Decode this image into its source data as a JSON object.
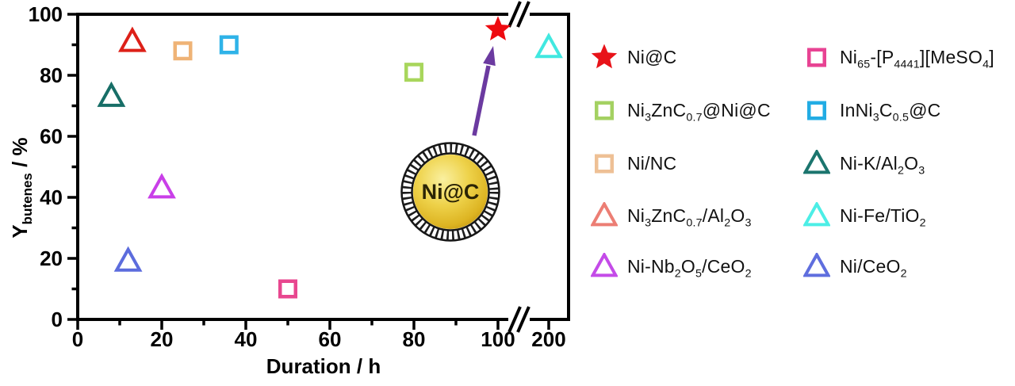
{
  "chart_data": {
    "type": "scatter",
    "title": "",
    "xlabel": "Duration / h",
    "ylabel": "Ybutenes / %",
    "ylabel_parts": [
      {
        "t": "Y"
      },
      {
        "t": "butenes",
        "sub": true
      },
      {
        "t": " / %"
      }
    ],
    "ylim": [
      0,
      100
    ],
    "grid": false,
    "x_axis_break_between": [
      100,
      200
    ],
    "x_ticks": {
      "major": [
        0,
        20,
        40,
        60,
        80,
        100,
        200
      ],
      "minor": [
        10,
        30,
        50,
        70,
        90
      ]
    },
    "y_ticks": {
      "major": [
        0,
        20,
        40,
        60,
        80,
        100
      ],
      "minor": [
        10,
        30,
        50,
        70,
        90
      ]
    },
    "series": [
      {
        "name": "Ni@C",
        "label_parts": [
          {
            "t": "Ni@C"
          }
        ],
        "marker": "star",
        "color": "#ee0a10",
        "legend_color": "#e81319",
        "x": 100,
        "y": 95
      },
      {
        "name": "Ni3ZnC0.7@Ni@C",
        "label_parts": [
          {
            "t": "Ni"
          },
          {
            "t": "3",
            "sub": true
          },
          {
            "t": "ZnC"
          },
          {
            "t": "0.7",
            "sub": true
          },
          {
            "t": "@Ni@C"
          }
        ],
        "marker": "square",
        "color": "#a8d65c",
        "legend_color": "#a4d162",
        "x": 80,
        "y": 81
      },
      {
        "name": "Ni/NC",
        "label_parts": [
          {
            "t": "Ni/NC"
          }
        ],
        "marker": "square",
        "color": "#efb376",
        "legend_color": "#eec095",
        "x": 25,
        "y": 88
      },
      {
        "name": "Ni3ZnC0.7/Al2O3",
        "label_parts": [
          {
            "t": "Ni"
          },
          {
            "t": "3",
            "sub": true
          },
          {
            "t": "ZnC"
          },
          {
            "t": "0.7",
            "sub": true
          },
          {
            "t": "/Al"
          },
          {
            "t": "2",
            "sub": true
          },
          {
            "t": "O"
          },
          {
            "t": "3",
            "sub": true
          }
        ],
        "marker": "triangle",
        "color": "#dd2018",
        "legend_color": "#ec7e74",
        "x": 13,
        "y": 91
      },
      {
        "name": "Ni-Nb2O5/CeO2",
        "label_parts": [
          {
            "t": "Ni-Nb"
          },
          {
            "t": "2",
            "sub": true
          },
          {
            "t": "O"
          },
          {
            "t": "5",
            "sub": true
          },
          {
            "t": "/CeO"
          },
          {
            "t": "2",
            "sub": true
          }
        ],
        "marker": "triangle",
        "color": "#c93fe8",
        "legend_color": "#c44be8",
        "x": 20,
        "y": 43
      },
      {
        "name": "Ni65-[P4441][MeSO4]",
        "label_parts": [
          {
            "t": "Ni"
          },
          {
            "t": "65",
            "sub": true
          },
          {
            "t": "-[P"
          },
          {
            "t": "4441",
            "sub": true
          },
          {
            "t": "][MeSO"
          },
          {
            "t": "4",
            "sub": true
          },
          {
            "t": "]"
          }
        ],
        "marker": "square",
        "color": "#e8478f",
        "legend_color": "#e84393",
        "x": 50,
        "y": 10
      },
      {
        "name": "InNi3C0.5@C",
        "label_parts": [
          {
            "t": "InNi"
          },
          {
            "t": "3",
            "sub": true
          },
          {
            "t": "C"
          },
          {
            "t": "0.5",
            "sub": true
          },
          {
            "t": "@C"
          }
        ],
        "marker": "square",
        "color": "#2fb3e8",
        "legend_color": "#22ace4",
        "x": 36,
        "y": 90
      },
      {
        "name": "Ni-K/Al2O3",
        "label_parts": [
          {
            "t": "Ni-K/Al"
          },
          {
            "t": "2",
            "sub": true
          },
          {
            "t": "O"
          },
          {
            "t": "3",
            "sub": true
          }
        ],
        "marker": "triangle",
        "color": "#176e67",
        "legend_color": "#1b756e",
        "x": 8,
        "y": 73
      },
      {
        "name": "Ni-Fe/TiO2",
        "label_parts": [
          {
            "t": "Ni-Fe/TiO"
          },
          {
            "t": "2",
            "sub": true
          }
        ],
        "marker": "triangle",
        "color": "#41e8e0",
        "legend_color": "#4ceee6",
        "x": 200,
        "y": 89
      },
      {
        "name": "Ni/CeO2",
        "label_parts": [
          {
            "t": "Ni/CeO"
          },
          {
            "t": "2",
            "sub": true
          }
        ],
        "marker": "triangle",
        "color": "#5c6cdd",
        "legend_color": "#5f6ede",
        "x": 12,
        "y": 19
      }
    ]
  },
  "legend": {
    "columns": [
      [
        0,
        1,
        2,
        3,
        4
      ],
      [
        5,
        6,
        7,
        8,
        9
      ]
    ]
  },
  "annotation": {
    "sphere_label": "Ni@C",
    "arrow_color": "#6b3aa0",
    "sphere_core_color": "#e7c52f",
    "sphere_highlight_color": "#faf0a0",
    "sphere_edge_color": "#bf920e",
    "cage_color": "#161616"
  }
}
